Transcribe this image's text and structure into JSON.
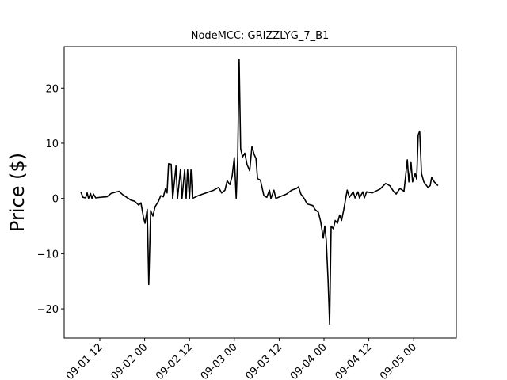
{
  "chart_data": {
    "type": "line",
    "title": "NodeMCC: GRIZZLYG_7_B1",
    "ylabel": "Price ($)",
    "xlim": [
      2.46,
      107.4
    ],
    "ylim": [
      -25.3,
      27.5
    ],
    "xticks": [
      {
        "value": 12,
        "label": "09-01 12"
      },
      {
        "value": 24,
        "label": "09-02 00"
      },
      {
        "value": 36,
        "label": "09-02 12"
      },
      {
        "value": 48,
        "label": "09-03 00"
      },
      {
        "value": 60,
        "label": "09-03 12"
      },
      {
        "value": 72,
        "label": "09-04 00"
      },
      {
        "value": 84,
        "label": "09-04 12"
      },
      {
        "value": 96,
        "label": "09-05 00"
      }
    ],
    "yticks": [
      {
        "value": -20,
        "label": "−20"
      },
      {
        "value": -10,
        "label": "−10"
      },
      0,
      10,
      20
    ],
    "color": "#000000",
    "x": [
      6.9,
      7.5,
      8.2,
      8.6,
      9.0,
      9.5,
      9.9,
      10.3,
      10.9,
      12,
      13.9,
      15,
      16,
      17.1,
      18.1,
      19.2,
      20.3,
      21.3,
      22.4,
      23,
      23.7,
      24.1,
      24.7,
      25.1,
      25.6,
      26.2,
      26.8,
      27.7,
      28.3,
      29,
      29.6,
      30,
      30.4,
      31.1,
      31.5,
      32.4,
      32.8,
      33.6,
      34,
      34.7,
      35.1,
      35.5,
      36,
      36.4,
      36.8,
      38.3,
      40.4,
      42.5,
      43.8,
      44.6,
      45.5,
      46.1,
      46.8,
      47.4,
      48,
      48.5,
      48.9,
      49.3,
      49.7,
      50.2,
      50.8,
      51.4,
      52.1,
      52.7,
      53.3,
      53.8,
      54.2,
      55,
      55.9,
      56.7,
      57.4,
      57.8,
      58.6,
      59.1,
      60.5,
      62,
      63.3,
      64.6,
      65.2,
      65.8,
      66.7,
      67.5,
      69,
      69.6,
      70.5,
      71.1,
      71.8,
      72.2,
      72.6,
      73.1,
      73.5,
      73.9,
      74.5,
      75,
      75.6,
      76.2,
      76.7,
      77.3,
      77.8,
      78.2,
      78.8,
      79.8,
      80.3,
      81.1,
      81.5,
      82.4,
      82.8,
      83.4,
      84.9,
      87,
      88.5,
      89.6,
      90.7,
      91.3,
      92.3,
      93.4,
      94.3,
      94.7,
      95.3,
      95.7,
      96.4,
      96.8,
      97.2,
      97.6,
      98.1,
      98.7,
      99.8,
      100.4,
      100.8,
      101.5,
      102.5
    ],
    "values": [
      1.2,
      0.2,
      0.1,
      1.0,
      0,
      0.9,
      0,
      0.8,
      0.1,
      0.2,
      0.3,
      0.9,
      1.1,
      1.3,
      0.7,
      0.2,
      -0.3,
      -0.5,
      -1.2,
      -0.8,
      -3.5,
      -4.5,
      -2,
      -15.6,
      -2.2,
      -3.2,
      -1.5,
      -0.5,
      0.5,
      0.3,
      1.8,
      1.0,
      6.3,
      6.2,
      0,
      5.9,
      0,
      5.3,
      0,
      5.2,
      0,
      5.2,
      0,
      5.2,
      0,
      0.5,
      1.0,
      1.5,
      2.0,
      1.0,
      1.5,
      3.2,
      2.5,
      4.0,
      7.4,
      0,
      7.5,
      25.2,
      9,
      7.5,
      8.2,
      6.2,
      5.0,
      9.4,
      8,
      7.2,
      3.6,
      3.3,
      0.5,
      0.2,
      1.5,
      0,
      1.5,
      0,
      0.4,
      0.8,
      1.5,
      1.8,
      2.1,
      0.8,
      0,
      -1.0,
      -1.3,
      -2.0,
      -2.5,
      -4.2,
      -7.2,
      -5.0,
      -7.5,
      -15,
      -22.8,
      -5,
      -5.5,
      -4,
      -4.5,
      -3,
      -4,
      -2,
      0,
      1.5,
      0.2,
      1.2,
      0.1,
      1.2,
      0.1,
      1.2,
      0.1,
      1.2,
      1.0,
      1.7,
      2.7,
      2.3,
      1.2,
      0.8,
      1.8,
      1.3,
      7.0,
      3.0,
      6.5,
      3.0,
      4.5,
      3.5,
      11.5,
      12.2,
      4.5,
      3.0,
      2.0,
      2.3,
      3.8,
      3.0,
      2.3
    ]
  }
}
